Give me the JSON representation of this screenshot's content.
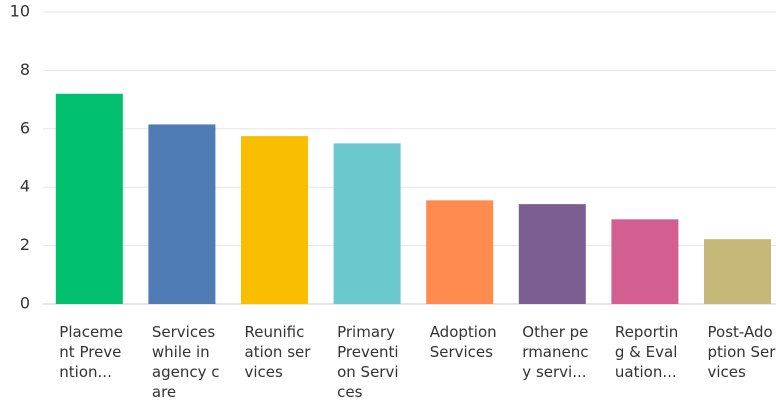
{
  "chart_data": {
    "type": "bar",
    "categories": [
      "Placement Prevention...",
      "Services while in agency care",
      "Reunification services",
      "Primary Prevention Services",
      "Adoption Services",
      "Other permanency servi...",
      "Reporting & Evaluation...",
      "Post-Adoption Services"
    ],
    "values": [
      7.2,
      6.15,
      5.75,
      5.5,
      3.55,
      3.42,
      2.9,
      2.22
    ],
    "colors": [
      "#00bf6f",
      "#507cb6",
      "#f9be00",
      "#6bc8cd",
      "#ff8b4f",
      "#7d5e90",
      "#d25f90",
      "#c7b879"
    ],
    "ylim": [
      0,
      10
    ],
    "yticks": [
      0,
      2,
      4,
      6,
      8,
      10
    ],
    "grid": true
  }
}
